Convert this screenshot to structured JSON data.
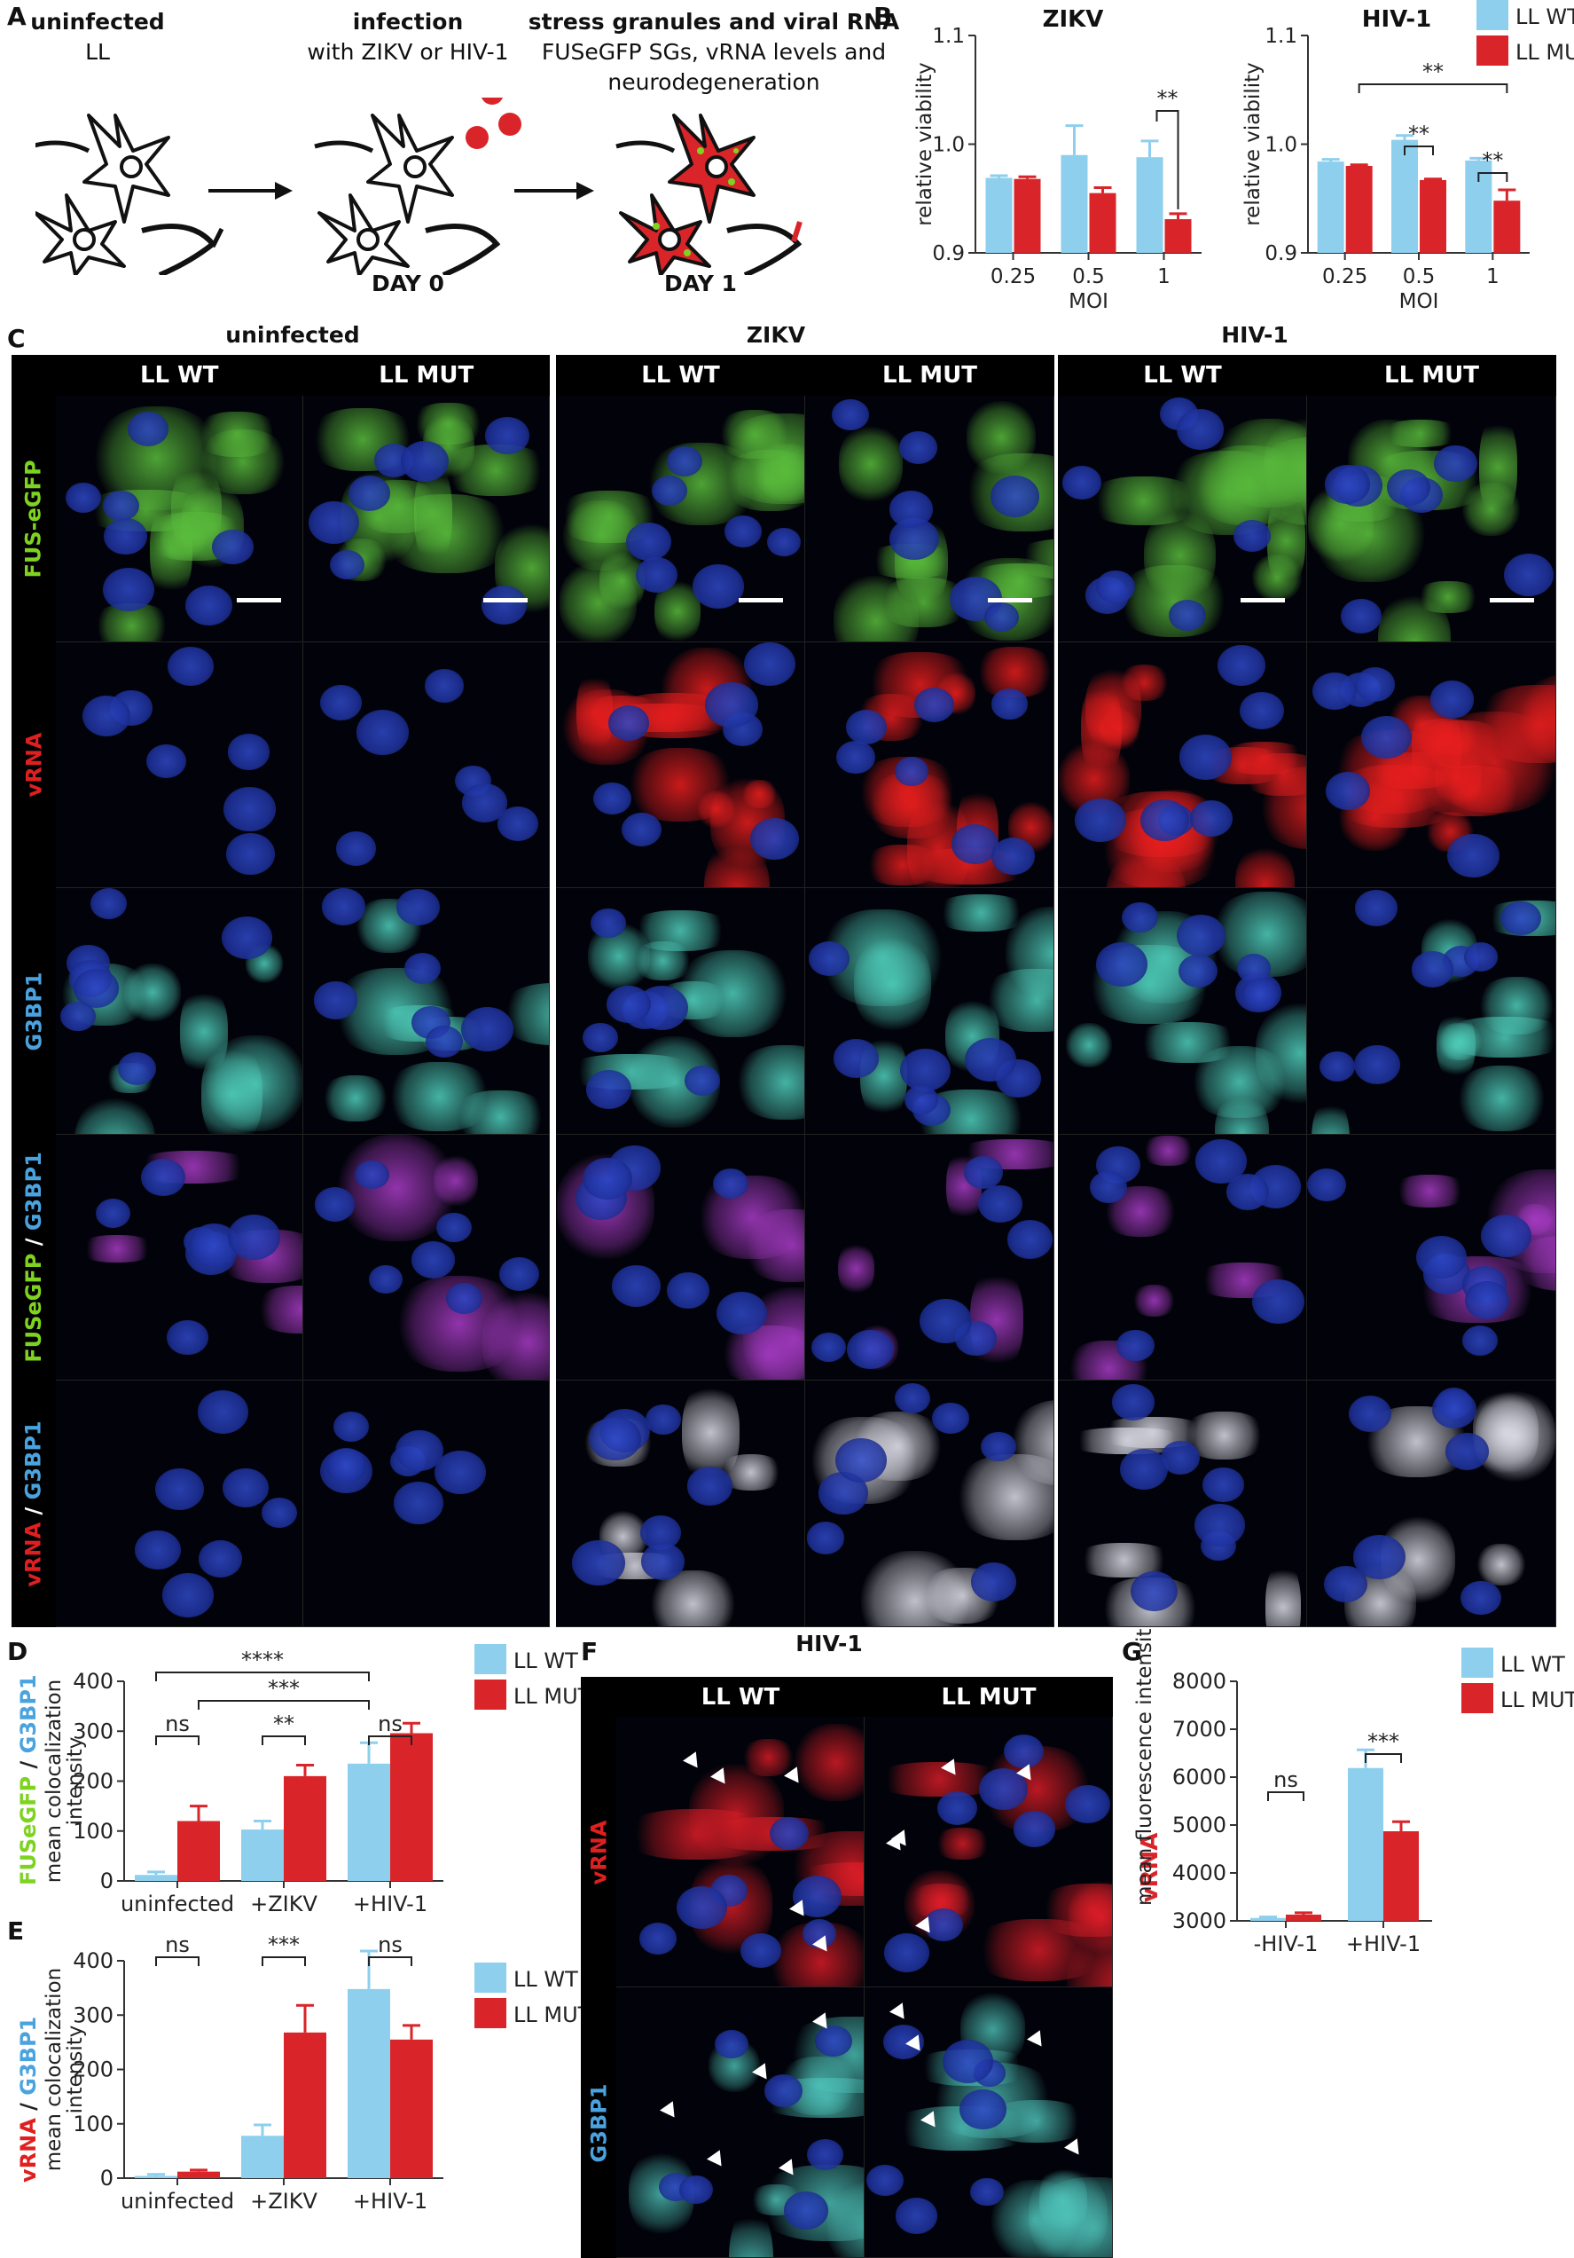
{
  "panel_labels": {
    "a": "A",
    "b": "B",
    "c": "C",
    "d": "D",
    "e": "E",
    "f": "F",
    "g": "G"
  },
  "schematic": {
    "stage1": {
      "title": "uninfected",
      "sub": "LL"
    },
    "stage2": {
      "title": "infection",
      "sub": "with ZIKV or HIV-1",
      "day": "DAY 0"
    },
    "stage3": {
      "title": "stress granules and viral RNA",
      "sub1": "FUSeGFP SGs, vRNA levels and",
      "sub2": "neurodegeneration",
      "day": "DAY 1"
    }
  },
  "grid": {
    "groups": [
      "uninfected",
      "ZIKV",
      "HIV-1"
    ],
    "cols": [
      "LL WT",
      "LL MUT",
      "LL WT",
      "LL MUT",
      "LL WT",
      "LL MUT"
    ],
    "rows": [
      {
        "parts": [
          {
            "t": "FUS-eGFP",
            "c": "#7ed321"
          }
        ]
      },
      {
        "parts": [
          {
            "t": "vRNA",
            "c": "#e02020"
          }
        ]
      },
      {
        "parts": [
          {
            "t": "G3BP1",
            "c": "#4aa3df"
          }
        ]
      },
      {
        "parts": [
          {
            "t": "FUSeGFP",
            "c": "#7ed321"
          },
          {
            "t": " / ",
            "c": "#ffffff"
          },
          {
            "t": "G3BP1",
            "c": "#4aa3df"
          }
        ]
      },
      {
        "parts": [
          {
            "t": "vRNA",
            "c": "#e02020"
          },
          {
            "t": " / ",
            "c": "#ffffff"
          },
          {
            "t": "G3BP1",
            "c": "#4aa3df"
          }
        ]
      }
    ]
  },
  "panel_f": {
    "title": "HIV-1",
    "cols": [
      "LL WT",
      "LL MUT"
    ],
    "rows": [
      "vRNA",
      "G3BP1"
    ]
  },
  "colors": {
    "wt": "#8ecfee",
    "mut": "#d9252a"
  },
  "chart_data": [
    {
      "id": "B-ZIKV",
      "type": "bar",
      "title": "ZIKV",
      "ylabel": "relative viability",
      "xlabel": "MOI",
      "categories": [
        "0.25",
        "0.5",
        "1"
      ],
      "ylim": [
        0.9,
        1.1
      ],
      "yticks": [
        "0.9",
        "1.0",
        "1.1"
      ],
      "series": [
        {
          "name": "LL WT",
          "values": [
            0.969,
            0.99,
            0.988
          ],
          "err": [
            0.002,
            0.027,
            0.015
          ]
        },
        {
          "name": "LL MUT",
          "values": [
            0.968,
            0.955,
            0.931
          ],
          "err": [
            0.002,
            0.005,
            0.005
          ]
        }
      ],
      "sig": [
        "**"
      ]
    },
    {
      "id": "B-HIV",
      "type": "bar",
      "title": "HIV-1",
      "ylabel": "relative viability",
      "xlabel": "MOI",
      "categories": [
        "0.25",
        "0.5",
        "1"
      ],
      "ylim": [
        0.9,
        1.1
      ],
      "yticks": [
        "0.9",
        "1.0",
        "1.1"
      ],
      "series": [
        {
          "name": "LL WT",
          "values": [
            0.984,
            1.004,
            0.985
          ],
          "err": [
            0.002,
            0.004,
            0.002
          ]
        },
        {
          "name": "LL MUT",
          "values": [
            0.98,
            0.967,
            0.948
          ],
          "err": [
            0.001,
            0.001,
            0.01
          ]
        }
      ],
      "sig": [
        "**",
        "**",
        "**"
      ],
      "legend": [
        "LL WT",
        "LL MUT"
      ]
    },
    {
      "id": "D",
      "type": "bar",
      "ylabel_main": "FUSeGFP / G3BP1",
      "ylabel": "mean colocalization intensity",
      "categories": [
        "uninfected",
        "+ZIKV",
        "+HIV-1"
      ],
      "ylim": [
        0,
        400
      ],
      "yticks": [
        "0",
        "100",
        "200",
        "300",
        "400"
      ],
      "series": [
        {
          "name": "LL WT",
          "values": [
            12,
            103,
            235
          ],
          "err": [
            6,
            17,
            42
          ]
        },
        {
          "name": "LL MUT",
          "values": [
            120,
            210,
            296
          ],
          "err": [
            30,
            22,
            20
          ]
        }
      ],
      "sig": [
        "ns",
        "**",
        "ns",
        "***",
        "****"
      ],
      "legend": [
        "LL WT",
        "LL MUT"
      ]
    },
    {
      "id": "E",
      "type": "bar",
      "ylabel_main": "vRNA / G3BP1",
      "ylabel": "mean colocalization intensity",
      "categories": [
        "uninfected",
        "+ZIKV",
        "+HIV-1"
      ],
      "ylim": [
        0,
        400
      ],
      "yticks": [
        "0",
        "100",
        "200",
        "300",
        "400"
      ],
      "series": [
        {
          "name": "LL WT",
          "values": [
            4,
            78,
            348
          ],
          "err": [
            3,
            20,
            70
          ]
        },
        {
          "name": "LL MUT",
          "values": [
            12,
            268,
            255
          ],
          "err": [
            3,
            50,
            26
          ]
        }
      ],
      "sig": [
        "ns",
        "***",
        "ns"
      ],
      "legend": [
        "LL WT",
        "LL MUT"
      ]
    },
    {
      "id": "G",
      "type": "bar",
      "ylabel_main": "vRNA",
      "ylabel": "mean fluorescence intensity",
      "categories": [
        "-HIV-1",
        "+HIV-1"
      ],
      "ylim": [
        3000,
        8000
      ],
      "yticks": [
        "3000",
        "4000",
        "5000",
        "6000",
        "7000",
        "8000"
      ],
      "series": [
        {
          "name": "LL WT",
          "values": [
            3060,
            6190
          ],
          "err": [
            20,
            380
          ]
        },
        {
          "name": "LL MUT",
          "values": [
            3130,
            4870
          ],
          "err": [
            40,
            200
          ]
        }
      ],
      "sig": [
        "ns",
        "***"
      ],
      "legend": [
        "LL WT",
        "LL MUT"
      ]
    }
  ]
}
